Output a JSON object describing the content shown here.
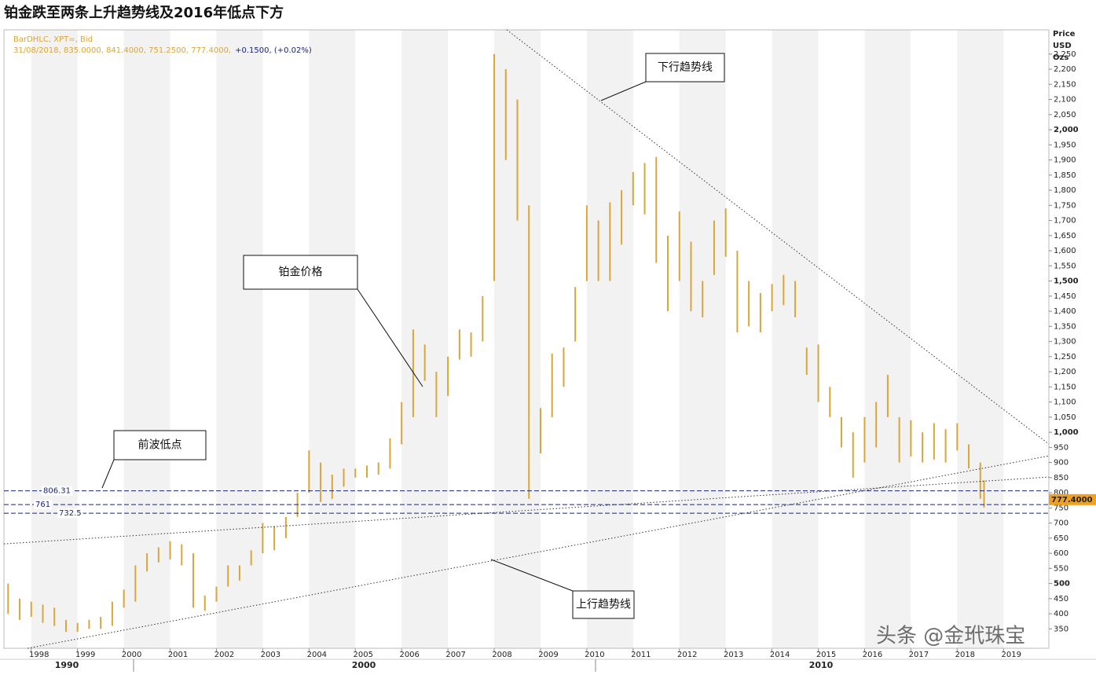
{
  "chart_data": {
    "type": "ohlc",
    "title": "铂金跌至两条上升趋势线及2016年低点下方",
    "legend_lines": [
      "BarDHLC, XPT=, Bid",
      "31/08/2018, 835.0000, 841.4000, 751.2500, 777.4000,"
    ],
    "change": "+0.1500, (+0.02%)",
    "axis_unit": [
      "Price",
      "USD",
      "Ozs"
    ],
    "color": "#d9a63a",
    "xlim": [
      1997.41,
      2019.98
    ],
    "ylim": [
      286,
      2330
    ],
    "xticks": [
      1998,
      1999,
      2000,
      2001,
      2002,
      2003,
      2004,
      2005,
      2006,
      2007,
      2008,
      2009,
      2010,
      2011,
      2012,
      2013,
      2014,
      2015,
      2016,
      2017,
      2018,
      2019
    ],
    "decade_labels": [
      "1990",
      "2000",
      "2010"
    ],
    "yticks": [
      350,
      400,
      450,
      500,
      550,
      600,
      650,
      700,
      750,
      800,
      850,
      900,
      950,
      {
        "value": 1000,
        "label": "1,000"
      },
      {
        "value": 1050,
        "label": "1,050"
      },
      {
        "value": 1100,
        "label": "1,100"
      },
      {
        "value": 1150,
        "label": "1,150"
      },
      {
        "value": 1200,
        "label": "1,200"
      },
      {
        "value": 1250,
        "label": "1,250"
      },
      {
        "value": 1300,
        "label": "1,300"
      },
      {
        "value": 1350,
        "label": "1,350"
      },
      {
        "value": 1400,
        "label": "1,400"
      },
      {
        "value": 1450,
        "label": "1,450"
      },
      {
        "value": 1500,
        "label": "1,500"
      },
      {
        "value": 1550,
        "label": "1,550"
      },
      {
        "value": 1600,
        "label": "1,600"
      },
      {
        "value": 1650,
        "label": "1,650"
      },
      {
        "value": 1700,
        "label": "1,700"
      },
      {
        "value": 1750,
        "label": "1,750"
      },
      {
        "value": 1800,
        "label": "1,800"
      },
      {
        "value": 1850,
        "label": "1,850"
      },
      {
        "value": 1900,
        "label": "1,900"
      },
      {
        "value": 1950,
        "label": "1,950"
      },
      {
        "value": 2000,
        "label": "2,000"
      },
      {
        "value": 2050,
        "label": "2,050"
      },
      {
        "value": 2100,
        "label": "2,100"
      },
      {
        "value": 2150,
        "label": "2,150"
      },
      {
        "value": 2200,
        "label": "2,200"
      },
      {
        "value": 2250,
        "label": "2,250"
      }
    ],
    "series": [
      {
        "x": [
          1997.5,
          1997.75,
          1998,
          1998.25,
          1998.5,
          1998.75,
          1999,
          1999.25,
          1999.5,
          1999.75,
          2000,
          2000.25,
          2000.5,
          2000.75,
          2001,
          2001.25,
          2001.5,
          2001.75,
          2002,
          2002.25,
          2002.5,
          2002.75,
          2003,
          2003.25,
          2003.5,
          2003.75,
          2004,
          2004.25,
          2004.5,
          2004.75,
          2005,
          2005.25,
          2005.5,
          2005.75,
          2006,
          2006.25,
          2006.5,
          2006.75,
          2007,
          2007.25,
          2007.5,
          2007.75,
          2008,
          2008.25,
          2008.5,
          2008.75,
          2009,
          2009.25,
          2009.5,
          2009.75,
          2010,
          2010.25,
          2010.5,
          2010.75,
          2011,
          2011.25,
          2011.5,
          2011.75,
          2012,
          2012.25,
          2012.5,
          2012.75,
          2013,
          2013.25,
          2013.5,
          2013.75,
          2014,
          2014.25,
          2014.5,
          2014.75,
          2015,
          2015.25,
          2015.5,
          2015.75,
          2016,
          2016.25,
          2016.5,
          2016.75,
          2017,
          2017.25,
          2017.5,
          2017.75,
          2018,
          2018.25,
          2018.5,
          2018.58
        ],
        "high": [
          500,
          450,
          440,
          430,
          420,
          380,
          370,
          380,
          390,
          440,
          480,
          560,
          600,
          620,
          640,
          630,
          600,
          460,
          490,
          560,
          560,
          610,
          700,
          690,
          720,
          800,
          940,
          900,
          860,
          880,
          880,
          890,
          900,
          980,
          1100,
          1340,
          1290,
          1200,
          1250,
          1340,
          1330,
          1450,
          2250,
          2200,
          2100,
          1750,
          1080,
          1260,
          1280,
          1480,
          1750,
          1700,
          1760,
          1800,
          1860,
          1890,
          1910,
          1650,
          1730,
          1630,
          1500,
          1700,
          1740,
          1600,
          1500,
          1460,
          1490,
          1520,
          1500,
          1280,
          1290,
          1150,
          1050,
          1000,
          1050,
          1100,
          1190,
          1050,
          1040,
          1000,
          1030,
          1010,
          1030,
          960,
          900,
          841
        ],
        "low": [
          400,
          380,
          390,
          370,
          360,
          340,
          340,
          350,
          350,
          360,
          420,
          440,
          540,
          570,
          580,
          560,
          420,
          410,
          440,
          490,
          510,
          560,
          600,
          610,
          650,
          720,
          800,
          770,
          780,
          820,
          850,
          850,
          860,
          880,
          960,
          1050,
          1170,
          1050,
          1120,
          1240,
          1250,
          1300,
          1500,
          1900,
          1700,
          780,
          930,
          1050,
          1150,
          1300,
          1500,
          1500,
          1500,
          1620,
          1750,
          1720,
          1560,
          1400,
          1500,
          1400,
          1380,
          1520,
          1580,
          1330,
          1350,
          1330,
          1400,
          1420,
          1380,
          1190,
          1100,
          1050,
          950,
          850,
          900,
          950,
          1050,
          900,
          920,
          900,
          910,
          900,
          940,
          880,
          780,
          751
        ]
      }
    ],
    "levels": [
      806.31,
      761,
      732.5
    ],
    "last_price": {
      "value": 777.4,
      "label": "777.4000"
    },
    "trendlines": [
      {
        "x": [
          2008.27,
          2019.98
        ],
        "y": [
          2330,
          961
        ]
      },
      {
        "x": [
          1997.92,
          2019.98
        ],
        "y": [
          286,
          922
        ]
      },
      {
        "x": [
          1997.41,
          2019.98
        ],
        "y": [
          631,
          852
        ]
      }
    ],
    "annotations": [
      "下行趋势线",
      "铂金价格",
      "前波低点",
      "上行趋势线"
    ],
    "watermark": "头条 @金玳珠宝"
  }
}
